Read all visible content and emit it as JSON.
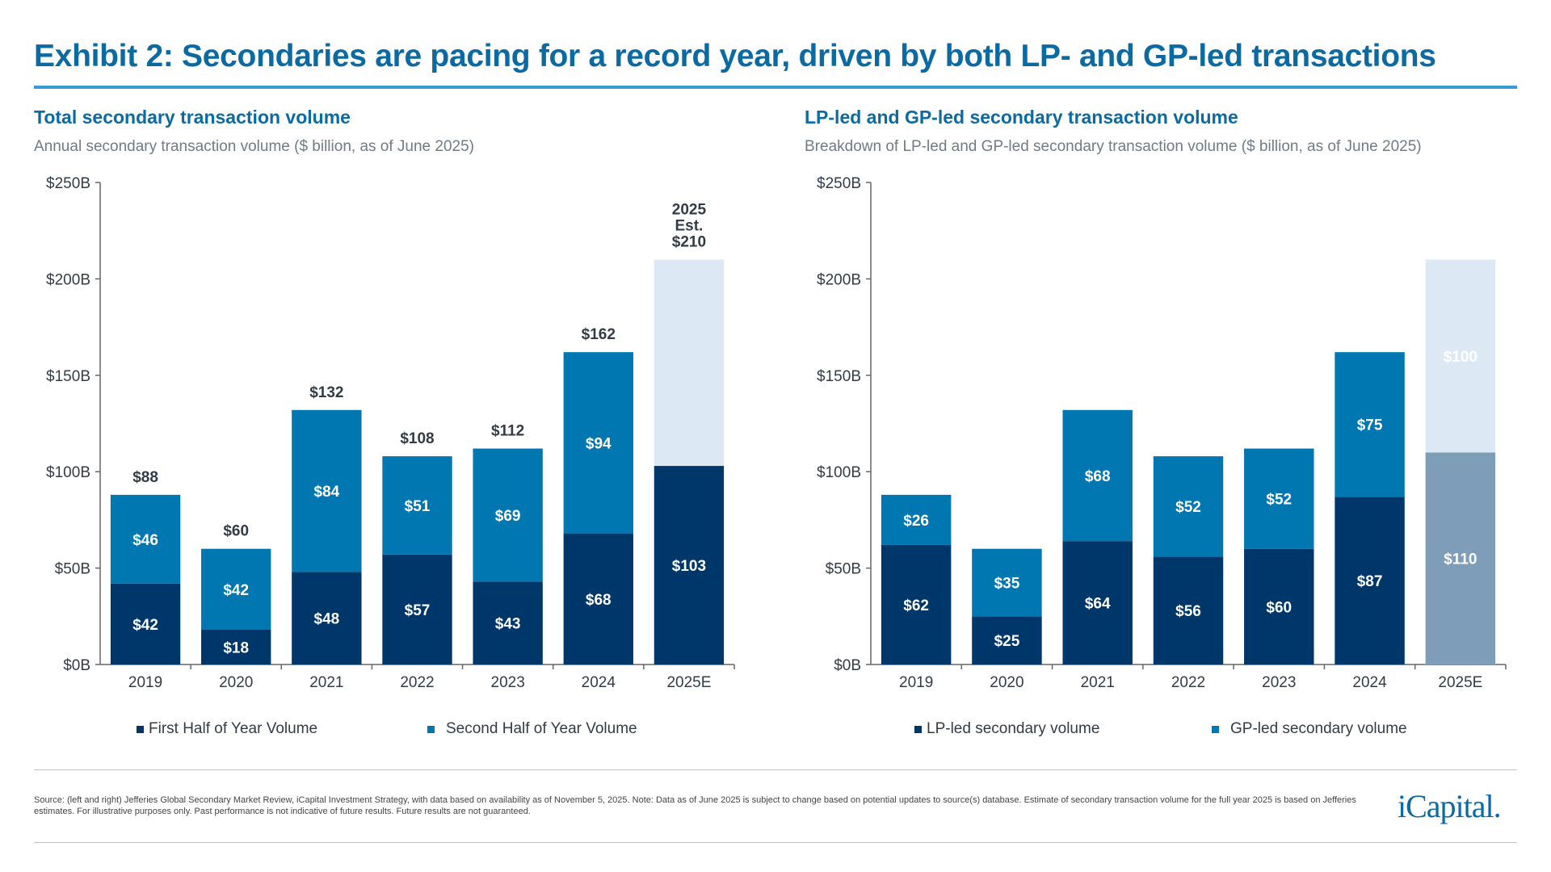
{
  "title": "Exhibit 2: Secondaries are pacing for a record year, driven by both LP- and GP-led transactions",
  "footer": {
    "source": "Source: (left and right) Jefferies Global Secondary Market Review, iCapital Investment Strategy, with data based on availability as of November 5, 2025. Note: Data as of June 2025 is subject to change based on potential updates to source(s) database. Estimate of secondary transaction volume for the full year 2025 is based on Jefferies estimates. For illustrative purposes only. Past performance is not indicative of future results. Future results are not guaranteed.",
    "logo": "iCapital."
  },
  "colors": {
    "dark": "#00376b",
    "mid": "#0077b0",
    "light": "#dce9f5",
    "estimate_dark": "#7e9db8",
    "axis": "#555555"
  },
  "chart_data": [
    {
      "type": "bar",
      "stacked": true,
      "title": "Total secondary transaction volume",
      "subtitle": "Annual secondary transaction volume ($ billion, as of June 2025)",
      "categories": [
        "2019",
        "2020",
        "2021",
        "2022",
        "2023",
        "2024",
        "2025E"
      ],
      "ylim": [
        0,
        250
      ],
      "yticks": [
        "$0B",
        "$50B",
        "$100B",
        "$150B",
        "$200B",
        "$250B"
      ],
      "series": [
        {
          "name": "First Half of Year Volume",
          "values": [
            42,
            18,
            48,
            57,
            43,
            68,
            103
          ],
          "colors": [
            "#00376b",
            "#00376b",
            "#00376b",
            "#00376b",
            "#00376b",
            "#00376b",
            "#00376b"
          ],
          "labels": [
            "$42",
            "$18",
            "$48",
            "$57",
            "$43",
            "$68",
            "$103"
          ]
        },
        {
          "name": "Second Half of Year Volume",
          "values": [
            46,
            42,
            84,
            51,
            69,
            94,
            107
          ],
          "colors": [
            "#0077b0",
            "#0077b0",
            "#0077b0",
            "#0077b0",
            "#0077b0",
            "#0077b0",
            "#dce9f5"
          ],
          "labels": [
            "$46",
            "$42",
            "$84",
            "$51",
            "$69",
            "$94",
            ""
          ]
        }
      ],
      "totals": [
        [
          "$88"
        ],
        [
          "$60"
        ],
        [
          "$132"
        ],
        [
          "$108"
        ],
        [
          "$112"
        ],
        [
          "$162"
        ],
        [
          "2025",
          "Est.",
          "$210"
        ]
      ],
      "total_values": [
        88,
        60,
        132,
        108,
        112,
        162,
        210
      ],
      "legend_position": "bottom",
      "grid": false
    },
    {
      "type": "bar",
      "stacked": true,
      "title": "LP-led and GP-led secondary transaction volume",
      "subtitle": "Breakdown of LP-led and GP-led secondary transaction volume ($ billion, as of June 2025)",
      "categories": [
        "2019",
        "2020",
        "2021",
        "2022",
        "2023",
        "2024",
        "2025E"
      ],
      "ylim": [
        0,
        250
      ],
      "yticks": [
        "$0B",
        "$50B",
        "$100B",
        "$150B",
        "$200B",
        "$250B"
      ],
      "series": [
        {
          "name": "LP-led secondary volume",
          "values": [
            62,
            25,
            64,
            56,
            60,
            87,
            110
          ],
          "colors": [
            "#00376b",
            "#00376b",
            "#00376b",
            "#00376b",
            "#00376b",
            "#00376b",
            "#7e9db8"
          ],
          "labels": [
            "$62",
            "$25",
            "$64",
            "$56",
            "$60",
            "$87",
            "$110"
          ]
        },
        {
          "name": "GP-led secondary volume",
          "values": [
            26,
            35,
            68,
            52,
            52,
            75,
            100
          ],
          "colors": [
            "#0077b0",
            "#0077b0",
            "#0077b0",
            "#0077b0",
            "#0077b0",
            "#0077b0",
            "#dce9f5"
          ],
          "labels": [
            "$26",
            "$35",
            "$68",
            "$52",
            "$52",
            "$75",
            "$100"
          ]
        }
      ],
      "legend_position": "bottom",
      "grid": false
    }
  ]
}
